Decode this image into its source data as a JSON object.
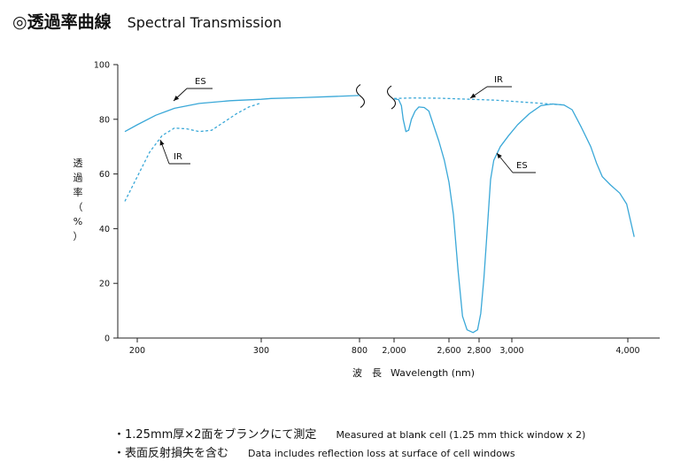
{
  "page": {
    "title_jp": "◎透過率曲線",
    "title_en": "Spectral Transmission"
  },
  "notes": [
    {
      "jp": "・1.25mm厚×2面をブランクにて測定",
      "en": "Measured at blank cell (1.25 mm thick window x 2)"
    },
    {
      "jp": "・表面反射損失を含む",
      "en": "Data includes reflection loss at surface of cell windows"
    }
  ],
  "chart_data": {
    "type": "line",
    "title": "Spectral Transmission",
    "ylabel_chars": [
      "透",
      "過",
      "率",
      "（",
      "%",
      "）"
    ],
    "xlabel_jp": "波　長",
    "xlabel_en": "Wavelength (nm)",
    "ylim": [
      0,
      100
    ],
    "yticks": [
      0,
      20,
      40,
      60,
      80,
      100
    ],
    "x_tick_labels": [
      "200",
      "300",
      "800",
      "2,000",
      "2,600",
      "2,800",
      "3,000",
      "4,000"
    ],
    "colors": {
      "line": "#3aa8d8",
      "axis": "#222222"
    },
    "series": [
      {
        "name": "ES",
        "style": "solid",
        "segments": [
          [
            [
              190,
              75.5
            ],
            [
              200,
              78
            ],
            [
              215,
              81.5
            ],
            [
              230,
              84
            ],
            [
              250,
              85.8
            ],
            [
              275,
              86.8
            ],
            [
              300,
              87.3
            ],
            [
              350,
              87.6
            ],
            [
              500,
              87.9
            ],
            [
              650,
              88.3
            ],
            [
              800,
              88.7
            ]
          ],
          [
            [
              2000,
              87.5
            ],
            [
              2050,
              87.2
            ],
            [
              2080,
              85
            ],
            [
              2100,
              80
            ],
            [
              2130,
              75.5
            ],
            [
              2160,
              76
            ],
            [
              2190,
              80
            ],
            [
              2230,
              83
            ],
            [
              2270,
              84.5
            ],
            [
              2330,
              84.3
            ],
            [
              2380,
              83
            ],
            [
              2430,
              78
            ],
            [
              2490,
              72
            ],
            [
              2550,
              65
            ],
            [
              2600,
              57
            ],
            [
              2630,
              45
            ],
            [
              2660,
              25
            ],
            [
              2690,
              8
            ],
            [
              2720,
              3
            ],
            [
              2760,
              2
            ],
            [
              2790,
              3
            ],
            [
              2810,
              9
            ],
            [
              2830,
              22
            ],
            [
              2850,
              40
            ],
            [
              2870,
              58
            ],
            [
              2890,
              65
            ],
            [
              2930,
              70
            ],
            [
              2980,
              74
            ],
            [
              3050,
              78
            ],
            [
              3150,
              82
            ],
            [
              3250,
              85
            ],
            [
              3350,
              85.6
            ],
            [
              3450,
              85.2
            ],
            [
              3520,
              83.5
            ],
            [
              3600,
              77
            ],
            [
              3680,
              70
            ],
            [
              3730,
              64
            ],
            [
              3780,
              59
            ],
            [
              3850,
              56
            ],
            [
              3930,
              53
            ],
            [
              3990,
              49
            ],
            [
              4040,
              37
            ]
          ]
        ]
      },
      {
        "name": "IR",
        "style": "dashed",
        "segments": [
          [
            [
              190,
              50
            ],
            [
              200,
              59
            ],
            [
              210,
              68
            ],
            [
              220,
              74
            ],
            [
              230,
              76.8
            ],
            [
              240,
              76.5
            ],
            [
              250,
              75.5
            ],
            [
              260,
              76
            ],
            [
              270,
              79
            ],
            [
              280,
              82
            ],
            [
              290,
              84.5
            ],
            [
              300,
              86
            ]
          ],
          [
            [
              2000,
              87.6
            ],
            [
              2200,
              87.8
            ],
            [
              2500,
              87.7
            ],
            [
              2900,
              87
            ],
            [
              3200,
              86
            ],
            [
              3450,
              85.2
            ]
          ]
        ]
      }
    ],
    "annotations": [
      {
        "text": "ES",
        "target": "ES-left"
      },
      {
        "text": "IR",
        "target": "IR-left"
      },
      {
        "text": "IR",
        "target": "IR-right"
      },
      {
        "text": "ES",
        "target": "ES-right"
      }
    ]
  }
}
